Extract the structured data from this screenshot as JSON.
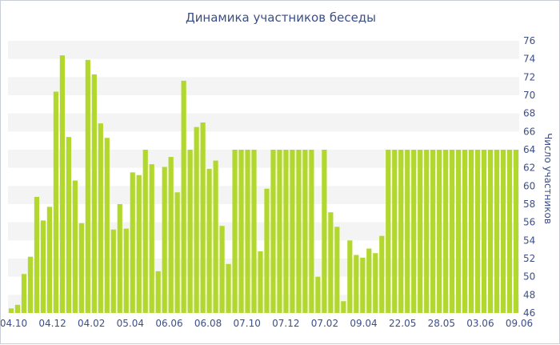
{
  "chart_data": {
    "type": "bar",
    "title": "Динамика участников беседы",
    "ylabel": "Число участников",
    "xlabel": "",
    "ylim": [
      46,
      76
    ],
    "yticks": [
      46,
      48,
      50,
      52,
      54,
      56,
      58,
      60,
      62,
      64,
      66,
      68,
      70,
      72,
      74,
      76
    ],
    "x_tick_labels": [
      "04.10",
      "04.12",
      "04.02",
      "05.04",
      "06.06",
      "06.08",
      "07.10",
      "07.12",
      "07.02",
      "09.04",
      "22.05",
      "28.05",
      "03.06",
      "09.06"
    ],
    "grid": "alternating horizontal bands",
    "values": [
      46.5,
      46.9,
      50.3,
      52.2,
      58.8,
      56.2,
      57.7,
      70.4,
      74.4,
      65.4,
      60.6,
      55.9,
      73.9,
      72.3,
      66.9,
      65.3,
      55.2,
      58.0,
      55.3,
      61.5,
      61.2,
      64.0,
      62.4,
      50.6,
      62.1,
      63.2,
      59.3,
      71.6,
      64.0,
      66.5,
      67.0,
      61.9,
      62.8,
      55.6,
      51.4,
      64.0,
      64.0,
      64.0,
      64.0,
      52.8,
      59.7,
      64.0,
      64.0,
      64.0,
      64.0,
      64.0,
      64.0,
      64.0,
      50.0,
      64.0,
      57.1,
      55.5,
      47.3,
      54.0,
      52.4,
      52.1,
      53.1,
      52.6,
      54.5,
      64.0,
      64.0,
      64.0,
      64.0,
      64.0,
      64.0,
      64.0,
      64.0,
      64.0,
      64.0,
      64.0,
      64.0,
      64.0,
      64.0,
      64.0,
      64.0,
      64.0,
      64.0,
      64.0,
      64.0,
      64.0
    ],
    "colors": {
      "bar": "#b2d82d",
      "band": "#f4f4f4",
      "axis_text": "#3d4f8a",
      "title": "#3b4f86"
    }
  }
}
